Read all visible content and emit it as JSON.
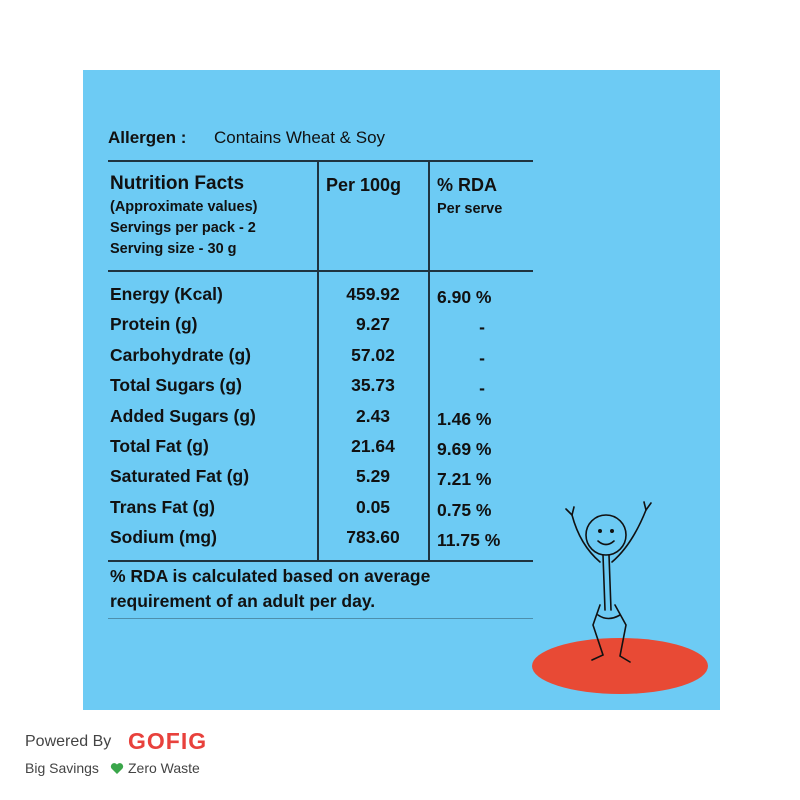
{
  "allergen": {
    "label": "Allergen :",
    "text": "Contains Wheat & Soy"
  },
  "header": {
    "col1": [
      "Nutrition Facts",
      "(Approximate values)",
      "Servings per pack - 2",
      "Serving size - 30 g"
    ],
    "col2": "Per 100g",
    "col3": [
      "% RDA",
      "Per serve"
    ]
  },
  "rows": [
    [
      "Energy (Kcal)",
      "459.92",
      "6.90 %"
    ],
    [
      "Protein (g)",
      "9.27",
      "-"
    ],
    [
      "Carbohydrate (g)",
      "57.02",
      "-"
    ],
    [
      "Total Sugars (g)",
      "35.73",
      "-"
    ],
    [
      "Added Sugars (g)",
      "2.43",
      "1.46 %"
    ],
    [
      "Total Fat (g)",
      "21.64",
      "9.69 %"
    ],
    [
      "Saturated Fat (g)",
      "5.29",
      "7.21 %"
    ],
    [
      "Trans Fat (g)",
      "0.05",
      "0.75 %"
    ],
    [
      "Sodium (mg)",
      "783.60",
      "11.75 %"
    ]
  ],
  "footnote": [
    "% RDA is calculated based on average",
    "requirement of an adult per day."
  ],
  "branding": {
    "powered_by": "Powered By",
    "brand": "GOFIG",
    "tagline_left": "Big Savings",
    "tagline_right": "Zero Waste"
  }
}
